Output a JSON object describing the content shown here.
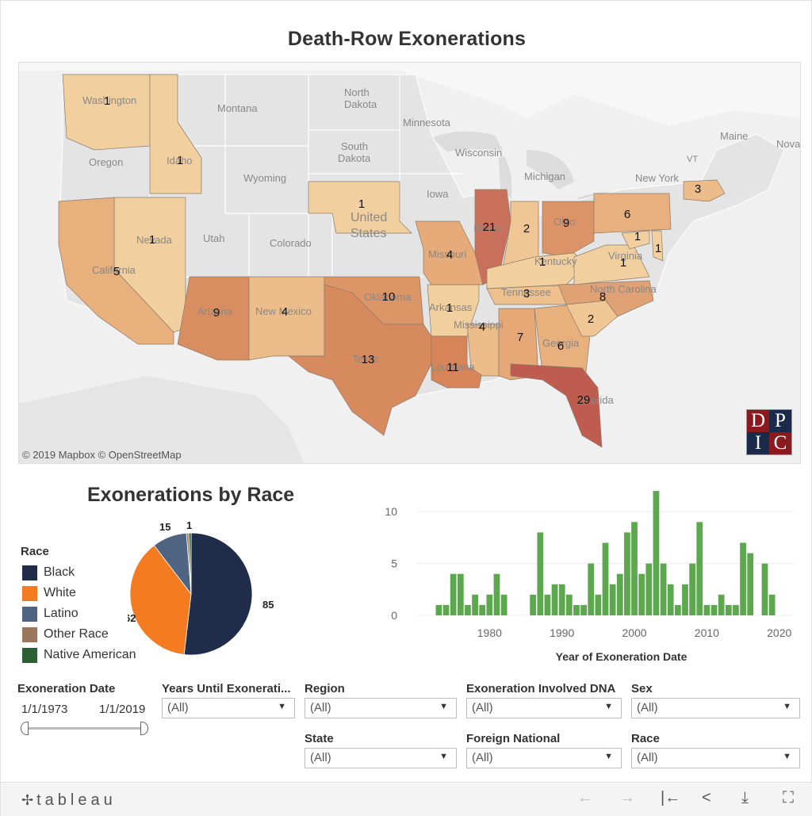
{
  "dashboard": {
    "title": "Death-Row Exonerations"
  },
  "map": {
    "attribution": "© 2019 Mapbox  © OpenStreetMap",
    "logo_letters": [
      "D",
      "P",
      "I",
      "C"
    ],
    "base_labels": [
      "Washington",
      "Montana",
      "North Dakota",
      "Minnesota",
      "South Dakota",
      "Wisconsin",
      "Michigan",
      "New York",
      "Maine",
      "Nova",
      "VT",
      "Oregon",
      "Idaho",
      "Wyoming",
      "Iowa",
      "United States",
      "Nevada",
      "Utah",
      "Colorado",
      "California",
      "Arizona",
      "New Mexico",
      "Oklahoma",
      "Texas",
      "Missouri",
      "Illinois",
      "Ohio",
      "Kentucky",
      "Virginia",
      "Arkansas",
      "Tennessee",
      "Mississippi",
      "North Carolina",
      "Georgia",
      "Louisiana",
      "Florida"
    ],
    "states": [
      {
        "name": "Washington",
        "count": 1
      },
      {
        "name": "Idaho",
        "count": 1
      },
      {
        "name": "Nevada",
        "count": 1
      },
      {
        "name": "California",
        "count": 5
      },
      {
        "name": "Arizona",
        "count": 9
      },
      {
        "name": "New Mexico",
        "count": 4
      },
      {
        "name": "Nebraska",
        "count": 1
      },
      {
        "name": "Oklahoma",
        "count": 10
      },
      {
        "name": "Texas",
        "count": 13
      },
      {
        "name": "Missouri",
        "count": 4
      },
      {
        "name": "Arkansas",
        "count": 1
      },
      {
        "name": "Louisiana",
        "count": 11
      },
      {
        "name": "Mississippi",
        "count": 4
      },
      {
        "name": "Illinois",
        "count": 21
      },
      {
        "name": "Indiana",
        "count": 2
      },
      {
        "name": "Ohio",
        "count": 9
      },
      {
        "name": "Kentucky",
        "count": 1
      },
      {
        "name": "Tennessee",
        "count": 3
      },
      {
        "name": "Alabama",
        "count": 7
      },
      {
        "name": "Georgia",
        "count": 6
      },
      {
        "name": "Florida",
        "count": 29
      },
      {
        "name": "South Carolina",
        "count": 2
      },
      {
        "name": "North Carolina",
        "count": 8
      },
      {
        "name": "Virginia",
        "count": 1
      },
      {
        "name": "Maryland",
        "count": 1
      },
      {
        "name": "Delaware",
        "count": 1
      },
      {
        "name": "Pennsylvania",
        "count": 6
      },
      {
        "name": "Massachusetts",
        "count": 3
      }
    ]
  },
  "race_chart": {
    "title": "Exonerations by Race",
    "legend_title": "Race"
  },
  "chart_data": [
    {
      "type": "pie",
      "title": "Exonerations by Race",
      "legend_title": "Race",
      "categories": [
        "Black",
        "White",
        "Latino",
        "Other Race",
        "Native American"
      ],
      "values": [
        85,
        62,
        15,
        1,
        1
      ],
      "labels": [
        "85",
        "62",
        "15",
        "1",
        ""
      ],
      "colors": [
        "#1f2d4a",
        "#f47b20",
        "#4e6482",
        "#9d7660",
        "#2e5e34"
      ]
    },
    {
      "type": "bar",
      "xlabel": "Year of Exoneration Date",
      "ylabel": "",
      "x_ticks": [
        1980,
        1990,
        2000,
        2010,
        2020
      ],
      "y_ticks": [
        0,
        5,
        10
      ],
      "ylim": [
        0,
        13
      ],
      "color": "#5da84e",
      "x": [
        1973,
        1974,
        1975,
        1976,
        1977,
        1978,
        1979,
        1980,
        1981,
        1982,
        1983,
        1984,
        1985,
        1986,
        1987,
        1988,
        1989,
        1990,
        1991,
        1992,
        1993,
        1994,
        1995,
        1996,
        1997,
        1998,
        1999,
        2000,
        2001,
        2002,
        2003,
        2004,
        2005,
        2006,
        2007,
        2008,
        2009,
        2010,
        2011,
        2012,
        2013,
        2014,
        2015,
        2016,
        2017,
        2018,
        2019
      ],
      "values": [
        1,
        1,
        4,
        4,
        1,
        2,
        1,
        2,
        4,
        2,
        0,
        0,
        0,
        2,
        8,
        2,
        3,
        3,
        2,
        1,
        1,
        5,
        2,
        7,
        3,
        4,
        8,
        9,
        4,
        5,
        12,
        5,
        3,
        1,
        3,
        5,
        9,
        1,
        1,
        2,
        1,
        1,
        7,
        6,
        0,
        5,
        2
      ]
    }
  ],
  "filters": {
    "exoneration_date": {
      "label": "Exoneration Date",
      "start": "1/1/1973",
      "end": "1/1/2019"
    },
    "years_until": {
      "label": "Years Until Exonerati...",
      "value": "(All)"
    },
    "region": {
      "label": "Region",
      "value": "(All)"
    },
    "dna": {
      "label": "Exoneration Involved DNA",
      "value": "(All)"
    },
    "sex": {
      "label": "Sex",
      "value": "(All)"
    },
    "state": {
      "label": "State",
      "value": "(All)"
    },
    "foreign_national": {
      "label": "Foreign National",
      "value": "(All)"
    },
    "race": {
      "label": "Race",
      "value": "(All)"
    }
  },
  "footer": {
    "brand": "tableau",
    "buttons": [
      "undo-icon",
      "redo-icon",
      "revert-icon",
      "share-icon",
      "download-icon",
      "fullscreen-icon"
    ]
  }
}
